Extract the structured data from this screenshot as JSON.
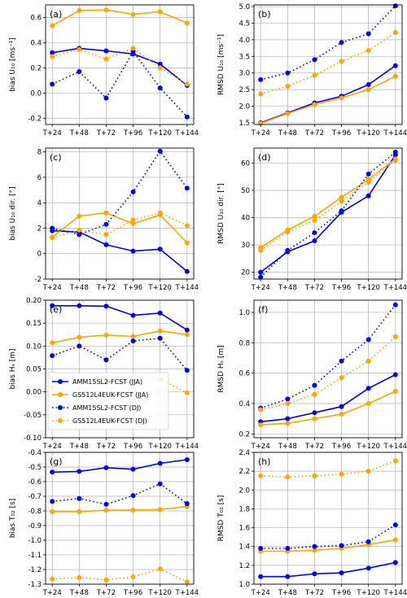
{
  "colors": {
    "AMM15": "#0000ee",
    "GS512": "#ffa500"
  },
  "chart_data": [
    {
      "type": "line",
      "panel_label": "(a)",
      "ylabel": "bias U₁₀ [ms⁻¹]",
      "categories": [
        "T+24",
        "T+48",
        "T+72",
        "T+96",
        "T+120",
        "T+144"
      ],
      "ylim": [
        -0.25,
        0.7
      ],
      "yticks": [
        "0.6",
        "0.4",
        "0.2",
        "0.0",
        "-0.2"
      ],
      "ytick_values": [
        0.6,
        0.4,
        0.2,
        0.0,
        -0.2
      ],
      "series": [
        {
          "name": "AMM15SL2-FCST (JJA)",
          "color": "AMM15",
          "style": "solid",
          "values": [
            0.32,
            0.355,
            0.335,
            0.31,
            0.23,
            0.06
          ]
        },
        {
          "name": "GS512L4EUK-FCST (JJA)",
          "color": "GS512",
          "style": "solid",
          "values": [
            0.535,
            0.655,
            0.66,
            0.625,
            0.645,
            0.555
          ]
        },
        {
          "name": "AMM15SL2-FCST (DJ)",
          "color": "AMM15",
          "style": "dotted",
          "values": [
            0.07,
            0.17,
            -0.04,
            0.33,
            0.04,
            -0.19
          ]
        },
        {
          "name": "GS512L4EUK-FCST (DJ)",
          "color": "GS512",
          "style": "dotted",
          "values": [
            0.29,
            0.345,
            0.27,
            0.355,
            0.2,
            0.07
          ]
        }
      ]
    },
    {
      "type": "line",
      "panel_label": "(b)",
      "ylabel": "RMSD U₁₀ [ms⁻¹]",
      "categories": [
        "T+24",
        "T+48",
        "T+72",
        "T+96",
        "T+120",
        "T+144"
      ],
      "ylim": [
        1.45,
        5.05
      ],
      "yticks": [
        "5.0",
        "4.5",
        "4.0",
        "3.5",
        "3.0",
        "2.5",
        "2.0",
        "1.5"
      ],
      "ytick_values": [
        5.0,
        4.5,
        4.0,
        3.5,
        3.0,
        2.5,
        2.0,
        1.5
      ],
      "series": [
        {
          "name": "AMM15SL2-FCST (JJA)",
          "color": "AMM15",
          "style": "solid",
          "values": [
            1.5,
            1.8,
            2.1,
            2.3,
            2.65,
            3.22
          ]
        },
        {
          "name": "GS512L4EUK-FCST (JJA)",
          "color": "GS512",
          "style": "solid",
          "values": [
            1.48,
            1.78,
            2.05,
            2.25,
            2.5,
            2.9
          ]
        },
        {
          "name": "AMM15SL2-FCST (DJ)",
          "color": "AMM15",
          "style": "dotted",
          "values": [
            2.8,
            3.0,
            3.4,
            3.92,
            4.18,
            5.02
          ]
        },
        {
          "name": "GS512L4EUK-FCST (DJ)",
          "color": "GS512",
          "style": "dotted",
          "values": [
            2.37,
            2.6,
            2.93,
            3.35,
            3.68,
            4.22
          ]
        }
      ]
    },
    {
      "type": "line",
      "panel_label": "(c)",
      "ylabel": "bias U₁₀ dir. [°]",
      "categories": [
        "T+24",
        "T+48",
        "T+72",
        "T+96",
        "T+120",
        "T+144"
      ],
      "ylim": [
        -2.0,
        8.3
      ],
      "yticks": [
        "8",
        "6",
        "4",
        "2",
        "0",
        "-2"
      ],
      "ytick_values": [
        8,
        6,
        4,
        2,
        0,
        -2
      ],
      "series": [
        {
          "name": "AMM15SL2-FCST (JJA)",
          "color": "AMM15",
          "style": "solid",
          "values": [
            1.8,
            1.7,
            0.7,
            0.2,
            0.35,
            -1.4
          ]
        },
        {
          "name": "GS512L4EUK-FCST (JJA)",
          "color": "GS512",
          "style": "solid",
          "values": [
            1.3,
            2.95,
            3.2,
            2.35,
            3.05,
            0.85
          ]
        },
        {
          "name": "AMM15SL2-FCST (DJ)",
          "color": "AMM15",
          "style": "dotted",
          "values": [
            2.0,
            1.5,
            2.3,
            4.85,
            8.05,
            5.15
          ]
        },
        {
          "name": "GS512L4EUK-FCST (DJ)",
          "color": "GS512",
          "style": "dotted",
          "values": [
            1.25,
            1.85,
            1.5,
            2.65,
            3.2,
            2.2
          ]
        }
      ]
    },
    {
      "type": "line",
      "panel_label": "(d)",
      "ylabel": "RMSD U₁₀ dir. [°]",
      "categories": [
        "T+24",
        "T+48",
        "T+72",
        "T+96",
        "T+120",
        "T+144"
      ],
      "ylim": [
        17.5,
        65.5
      ],
      "yticks": [
        "60",
        "50",
        "40",
        "30",
        "20"
      ],
      "ytick_values": [
        60,
        50,
        40,
        30,
        20
      ],
      "series": [
        {
          "name": "AMM15SL2-FCST (JJA)",
          "color": "AMM15",
          "style": "solid",
          "values": [
            20.0,
            27.5,
            31.5,
            42.0,
            48.0,
            63.0
          ]
        },
        {
          "name": "GS512L4EUK-FCST (JJA)",
          "color": "GS512",
          "style": "solid",
          "values": [
            29.0,
            35.5,
            40.5,
            47.5,
            54.0,
            61.5
          ]
        },
        {
          "name": "AMM15SL2-FCST (DJ)",
          "color": "AMM15",
          "style": "dotted",
          "values": [
            18.2,
            28.0,
            34.5,
            42.5,
            56.0,
            64.0
          ]
        },
        {
          "name": "GS512L4EUK-FCST (DJ)",
          "color": "GS512",
          "style": "dotted",
          "values": [
            28.0,
            34.8,
            39.0,
            46.0,
            53.0,
            61.0
          ]
        }
      ]
    },
    {
      "type": "line",
      "panel_label": "(e)",
      "ylabel": "bias Hₛ [m]",
      "categories": [
        "T+24",
        "T+48",
        "T+72",
        "T+96",
        "T+120",
        "T+144"
      ],
      "ylim": [
        -0.1,
        0.2
      ],
      "yticks": [
        "0.20",
        "0.15",
        "0.10",
        "0.05",
        "0.00",
        "-0.05",
        "-0.10"
      ],
      "ytick_values": [
        0.2,
        0.15,
        0.1,
        0.05,
        0.0,
        -0.05,
        -0.1
      ],
      "legend": "lower-left",
      "series": [
        {
          "name": "AMM15SL2-FCST (JJA)",
          "color": "AMM15",
          "style": "solid",
          "values": [
            0.188,
            0.188,
            0.187,
            0.167,
            0.172,
            0.135
          ]
        },
        {
          "name": "GS512L4EUK-FCST (JJA)",
          "color": "GS512",
          "style": "solid",
          "values": [
            0.107,
            0.119,
            0.124,
            0.121,
            0.133,
            0.125
          ]
        },
        {
          "name": "AMM15SL2-FCST (DJ)",
          "color": "AMM15",
          "style": "dotted",
          "values": [
            0.079,
            0.1,
            0.07,
            0.111,
            0.117,
            0.047
          ]
        },
        {
          "name": "GS512L4EUK-FCST (DJ)",
          "color": "GS512",
          "style": "dotted",
          "values": [
            0.009,
            0.025,
            0.021,
            0.027,
            0.028,
            -0.002
          ]
        }
      ]
    },
    {
      "type": "line",
      "panel_label": "(f)",
      "ylabel": "RMSD Hₛ [m]",
      "categories": [
        "T+24",
        "T+48",
        "T+72",
        "T+96",
        "T+120",
        "T+144"
      ],
      "ylim": [
        0.175,
        1.08
      ],
      "yticks": [
        "1.0",
        "0.8",
        "0.6",
        "0.4",
        "0.2"
      ],
      "ytick_values": [
        1.0,
        0.8,
        0.6,
        0.4,
        0.2
      ],
      "series": [
        {
          "name": "AMM15SL2-FCST (JJA)",
          "color": "AMM15",
          "style": "solid",
          "values": [
            0.28,
            0.3,
            0.34,
            0.38,
            0.5,
            0.59
          ]
        },
        {
          "name": "GS512L4EUK-FCST (JJA)",
          "color": "GS512",
          "style": "solid",
          "values": [
            0.26,
            0.27,
            0.3,
            0.33,
            0.4,
            0.48
          ]
        },
        {
          "name": "AMM15SL2-FCST (DJ)",
          "color": "AMM15",
          "style": "dotted",
          "values": [
            0.37,
            0.43,
            0.52,
            0.68,
            0.82,
            1.05
          ]
        },
        {
          "name": "GS512L4EUK-FCST (DJ)",
          "color": "GS512",
          "style": "dotted",
          "values": [
            0.36,
            0.4,
            0.46,
            0.57,
            0.68,
            0.84
          ]
        }
      ]
    },
    {
      "type": "line",
      "panel_label": "(g)",
      "ylabel": "bias T₀₂ [s]",
      "categories": [
        "T+24",
        "T+48",
        "T+72",
        "T+96",
        "T+120",
        "T+144"
      ],
      "ylim": [
        -1.3,
        -0.4
      ],
      "yticks": [
        "-0.4",
        "-0.5",
        "-0.6",
        "-0.7",
        "-0.8",
        "-0.9",
        "-1.0",
        "-1.1",
        "-1.2",
        "-1.3"
      ],
      "ytick_values": [
        -0.4,
        -0.5,
        -0.6,
        -0.7,
        -0.8,
        -0.9,
        -1.0,
        -1.1,
        -1.2,
        -1.3
      ],
      "series": [
        {
          "name": "AMM15SL2-FCST (JJA)",
          "color": "AMM15",
          "style": "solid",
          "values": [
            -0.535,
            -0.53,
            -0.505,
            -0.515,
            -0.475,
            -0.45
          ]
        },
        {
          "name": "GS512L4EUK-FCST (JJA)",
          "color": "GS512",
          "style": "solid",
          "values": [
            -0.805,
            -0.805,
            -0.795,
            -0.795,
            -0.79,
            -0.77
          ]
        },
        {
          "name": "AMM15SL2-FCST (DJ)",
          "color": "AMM15",
          "style": "dotted",
          "values": [
            -0.735,
            -0.715,
            -0.755,
            -0.695,
            -0.615,
            -0.75
          ]
        },
        {
          "name": "GS512L4EUK-FCST (DJ)",
          "color": "GS512",
          "style": "dotted",
          "values": [
            -1.265,
            -1.255,
            -1.27,
            -1.25,
            -1.195,
            -1.285
          ]
        }
      ]
    },
    {
      "type": "line",
      "panel_label": "(h)",
      "ylabel": "RMSD T₀₂ [s]",
      "categories": [
        "T+24",
        "T+48",
        "T+72",
        "T+96",
        "T+120",
        "T+144"
      ],
      "ylim": [
        1.0,
        2.4
      ],
      "yticks": [
        "2.4",
        "2.2",
        "2.0",
        "1.8",
        "1.6",
        "1.4",
        "1.2",
        "1.0"
      ],
      "ytick_values": [
        2.4,
        2.2,
        2.0,
        1.8,
        1.6,
        1.4,
        1.2,
        1.0
      ],
      "series": [
        {
          "name": "AMM15SL2-FCST (JJA)",
          "color": "AMM15",
          "style": "solid",
          "values": [
            1.08,
            1.08,
            1.11,
            1.12,
            1.17,
            1.23
          ]
        },
        {
          "name": "GS512L4EUK-FCST (JJA)",
          "color": "GS512",
          "style": "solid",
          "values": [
            1.35,
            1.35,
            1.36,
            1.38,
            1.42,
            1.47
          ]
        },
        {
          "name": "AMM15SL2-FCST (DJ)",
          "color": "AMM15",
          "style": "dotted",
          "values": [
            1.38,
            1.38,
            1.4,
            1.41,
            1.45,
            1.63
          ]
        },
        {
          "name": "GS512L4EUK-FCST (DJ)",
          "color": "GS512",
          "style": "dotted",
          "values": [
            2.15,
            2.14,
            2.15,
            2.17,
            2.2,
            2.31
          ]
        }
      ]
    }
  ]
}
